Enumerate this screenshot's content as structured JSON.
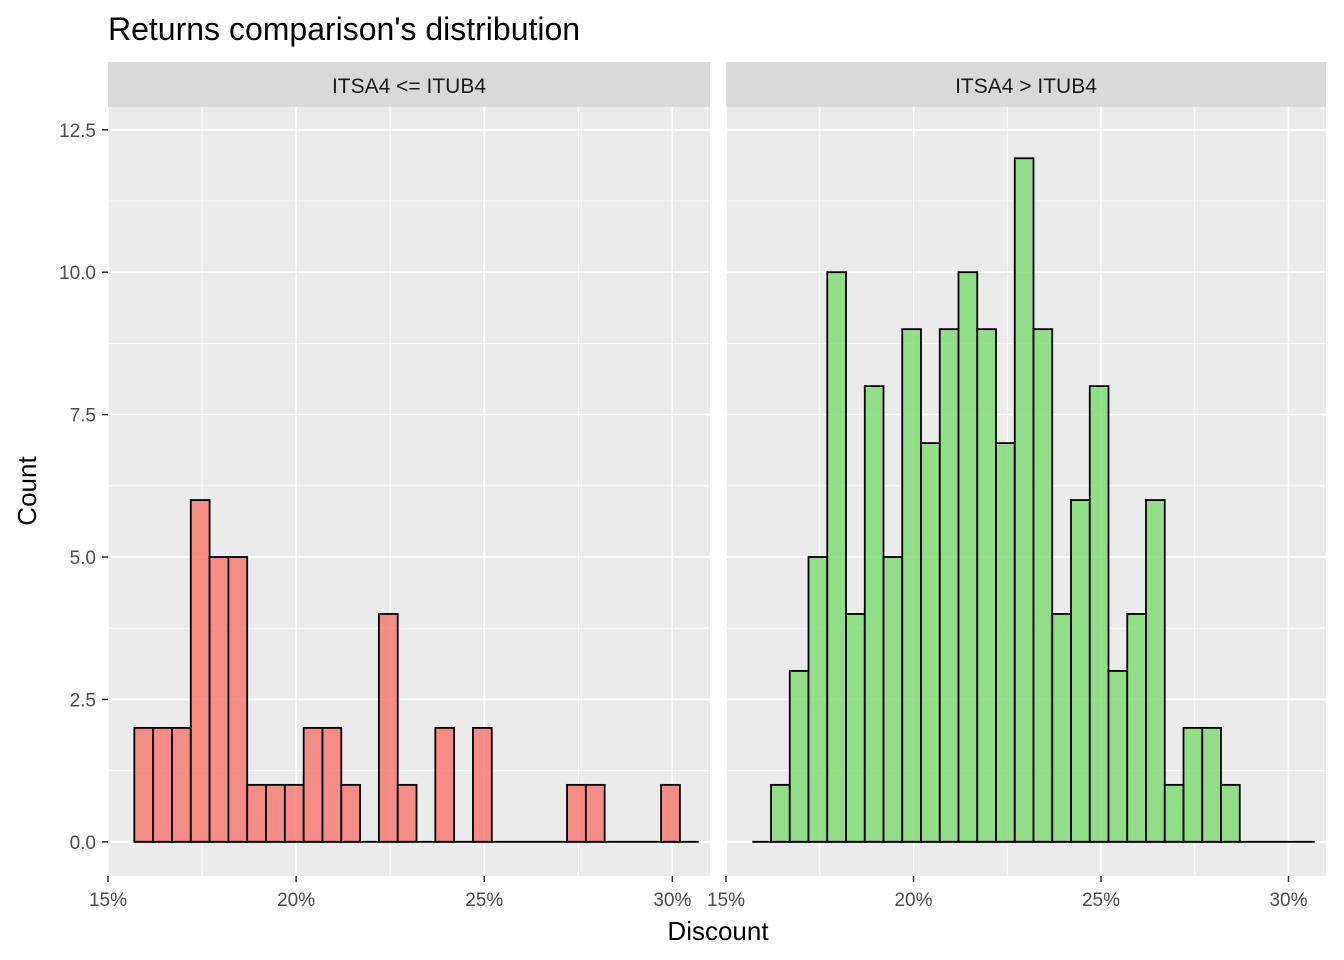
{
  "chart_data": {
    "type": "bar",
    "title": "Returns comparison's distribution",
    "xlabel": "Discount",
    "ylabel": "Count",
    "xlim": [
      15,
      31.0
    ],
    "ylim": [
      -0.6,
      12.9
    ],
    "x_ticks": [
      15,
      20,
      25,
      30
    ],
    "x_tick_labels": [
      "15%",
      "20%",
      "25%",
      "30%"
    ],
    "y_ticks": [
      0,
      2.5,
      5,
      7.5,
      10,
      12.5
    ],
    "y_tick_labels": [
      "0.0",
      "2.5",
      "5.0",
      "7.5",
      "10.0",
      "12.5"
    ],
    "bin_start": 15.7,
    "bin_width": 0.5,
    "grid": true,
    "legend": "none",
    "panels": [
      {
        "label": "ITSA4 <= ITUB4",
        "fill": "#F8766D",
        "values": [
          2,
          2,
          2,
          6,
          5,
          5,
          1,
          1,
          1,
          2,
          2,
          1,
          0,
          4,
          1,
          0,
          2,
          0,
          2,
          0,
          0,
          0,
          0,
          1,
          1,
          0,
          0,
          0,
          1,
          0
        ]
      },
      {
        "label": "ITSA4 > ITUB4",
        "fill": "#7CD96E",
        "values": [
          0,
          1,
          3,
          5,
          10,
          4,
          8,
          5,
          9,
          7,
          9,
          10,
          9,
          7,
          12,
          9,
          4,
          6,
          8,
          3,
          4,
          6,
          1,
          2,
          2,
          1,
          0,
          0,
          0,
          0
        ]
      }
    ]
  }
}
